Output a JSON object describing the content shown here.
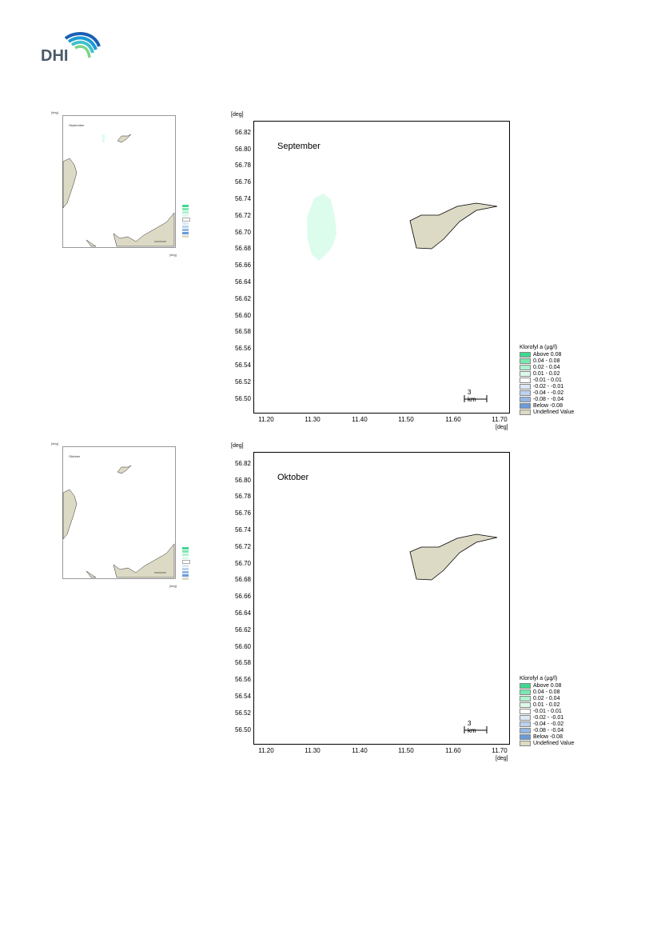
{
  "header": {
    "logo_text": "DHI"
  },
  "panels": [
    {
      "month": "September",
      "xunit": "[deg]",
      "yunit": "[deg]",
      "yticks": [
        "56.82",
        "56.80",
        "56.78",
        "56.76",
        "56.74",
        "56.72",
        "56.70",
        "56.68",
        "56.66",
        "56.64",
        "56.62",
        "56.60",
        "56.58",
        "56.56",
        "56.54",
        "56.52",
        "56.50"
      ],
      "xticks": [
        "11.20",
        "11.30",
        "11.40",
        "11.50",
        "11.60",
        "11.70"
      ],
      "scalebar": "3 km",
      "thumbnail": {
        "month": "September",
        "xunit": "[deg]",
        "yunit": "[deg]"
      }
    },
    {
      "month": "Oktober",
      "xunit": "[deg]",
      "yunit": "[deg]",
      "yticks": [
        "56.82",
        "56.80",
        "56.78",
        "56.76",
        "56.74",
        "56.72",
        "56.70",
        "56.68",
        "56.66",
        "56.64",
        "56.62",
        "56.60",
        "56.58",
        "56.56",
        "56.54",
        "56.52",
        "56.50"
      ],
      "xticks": [
        "11.20",
        "11.30",
        "11.40",
        "11.50",
        "11.60",
        "11.70"
      ],
      "scalebar": "3 km",
      "thumbnail": {
        "month": "Oktober",
        "xunit": "[deg]",
        "yunit": "[deg]"
      }
    }
  ],
  "legend": {
    "title": "Klorofyl a (µg/l)",
    "items": [
      {
        "label": "Above  0.08",
        "color": "#40d890"
      },
      {
        "label": " 0.04 -  0.08",
        "color": "#7ae8b0"
      },
      {
        "label": " 0.02 -  0.04",
        "color": "#aef2cf"
      },
      {
        "label": " 0.01 -  0.02",
        "color": "#dcf9ea"
      },
      {
        "label": "-0.01 -  0.01",
        "color": "#ffffff"
      },
      {
        "label": "-0.02 - -0.01",
        "color": "#dde8f6"
      },
      {
        "label": "-0.04 - -0.02",
        "color": "#bcd2ef"
      },
      {
        "label": "-0.08 - -0.04",
        "color": "#93b7e6"
      },
      {
        "label": "Below -0.08",
        "color": "#6a9ad9"
      },
      {
        "label": "Undefined Value",
        "color": "#dcdac4"
      }
    ]
  },
  "colors": {
    "land": "#dcdac4",
    "anomaly_positive_light": "#dcfcec",
    "frame": "#000000"
  }
}
